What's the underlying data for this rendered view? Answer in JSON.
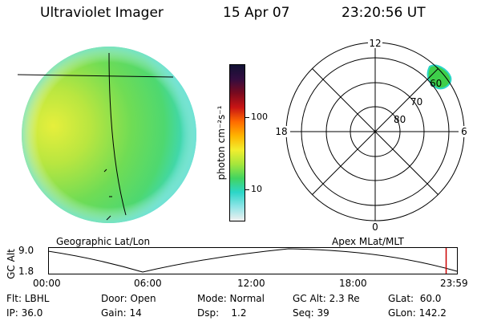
{
  "header": {
    "title": "Ultraviolet Imager",
    "date": "15 Apr 07",
    "time": "23:20:56 UT"
  },
  "colorbar": {
    "unit": "photon cm⁻²s⁻¹",
    "ticks": [
      "100",
      "10"
    ],
    "colors": [
      "#111133",
      "#330d40",
      "#7a0a1e",
      "#c81414",
      "#ff6a00",
      "#ffb400",
      "#f2ee2e",
      "#a6e63c",
      "#42d460",
      "#2cd6c8",
      "#8ee4e6",
      "#f0f0f0"
    ]
  },
  "polar": {
    "mlt_labels": {
      "top": "12",
      "left": "18",
      "right": "6",
      "bottom": "0"
    },
    "mlat_labels": [
      "60",
      "70",
      "80"
    ]
  },
  "maps": {
    "left_label": "Geographic Lat/Lon",
    "right_label": "Apex MLat/MLT"
  },
  "timeline": {
    "y_axis_label": "GC Alt",
    "y_max": "9.0",
    "y_min": "1.8",
    "x_ticks": [
      "00:00",
      "06:00",
      "12:00",
      "18:00",
      "23:59"
    ],
    "marker_time": "23:20:56",
    "marker_color": "#cc0000"
  },
  "info": {
    "row1": {
      "filter": "Flt: LBHL",
      "door": "Door: Open",
      "mode": "Mode: Normal",
      "gc_alt": "GC Alt: 2.3 Re",
      "glat": "GLat:  60.0"
    },
    "row2": {
      "ip": "IP: 36.0",
      "gain": "Gain: 14",
      "dsp": "Dsp:    1.2",
      "seq": "Seq: 39",
      "glon": "GLon: 142.2"
    }
  }
}
